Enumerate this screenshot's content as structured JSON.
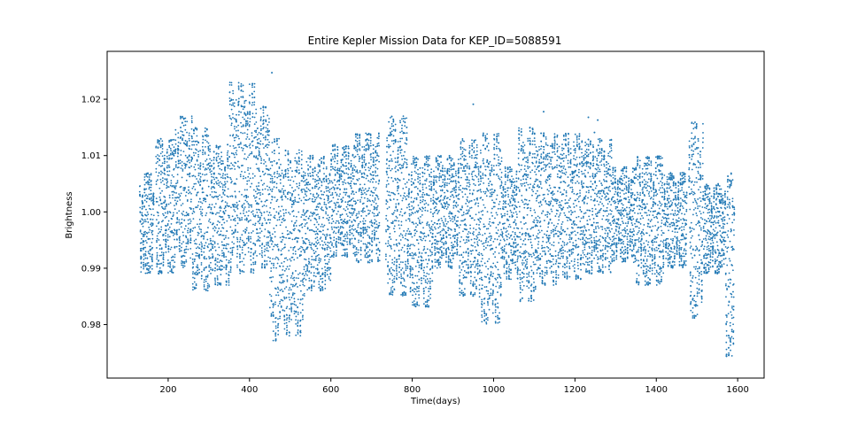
{
  "chart_data": {
    "type": "scatter",
    "title": "Entire Kepler Mission Data for KEP_ID=5088591",
    "xlabel": "Time(days)",
    "ylabel": "Brightness",
    "xlim": [
      50,
      1665
    ],
    "ylim": [
      0.9705,
      1.0285
    ],
    "xticks": [
      200,
      400,
      600,
      800,
      1000,
      1200,
      1400,
      1600
    ],
    "xtick_labels": [
      "200",
      "400",
      "600",
      "800",
      "1000",
      "1200",
      "1400",
      "1600"
    ],
    "yticks": [
      0.98,
      0.99,
      1.0,
      1.01,
      1.02
    ],
    "ytick_labels": [
      "0.98",
      "0.99",
      "1.00",
      "1.01",
      "1.02"
    ],
    "marker_color": "#1f77b4",
    "grid": false,
    "legend": "none",
    "x_range_observed": [
      130,
      1592
    ],
    "segments": [
      {
        "x": [
          130,
          140
        ],
        "y": [
          0.988,
          1.006
        ]
      },
      {
        "x": [
          140,
          165
        ],
        "y": [
          0.989,
          1.007
        ]
      },
      {
        "x": [
          170,
          215
        ],
        "y": [
          0.989,
          1.013
        ]
      },
      {
        "x": [
          215,
          260
        ],
        "y": [
          0.99,
          1.017
        ]
      },
      {
        "x": [
          260,
          310
        ],
        "y": [
          0.986,
          1.015
        ]
      },
      {
        "x": [
          310,
          350
        ],
        "y": [
          0.987,
          1.012
        ]
      },
      {
        "x": [
          350,
          415
        ],
        "y": [
          0.989,
          1.023
        ]
      },
      {
        "x": [
          415,
          450
        ],
        "y": [
          0.99,
          1.019
        ]
      },
      {
        "x": [
          450,
          480
        ],
        "y": [
          0.977,
          1.013
        ]
      },
      {
        "x": [
          480,
          535
        ],
        "y": [
          0.978,
          1.011
        ]
      },
      {
        "x": [
          535,
          600
        ],
        "y": [
          0.986,
          1.01
        ]
      },
      {
        "x": [
          600,
          660
        ],
        "y": [
          0.992,
          1.012
        ]
      },
      {
        "x": [
          660,
          720
        ],
        "y": [
          0.991,
          1.014
        ]
      },
      {
        "x": [
          735,
          790
        ],
        "y": [
          0.985,
          1.017
        ]
      },
      {
        "x": [
          790,
          850
        ],
        "y": [
          0.983,
          1.01
        ]
      },
      {
        "x": [
          850,
          915
        ],
        "y": [
          0.99,
          1.01
        ]
      },
      {
        "x": [
          915,
          965
        ],
        "y": [
          0.985,
          1.013
        ]
      },
      {
        "x": [
          965,
          1020
        ],
        "y": [
          0.98,
          1.014
        ]
      },
      {
        "x": [
          1020,
          1060
        ],
        "y": [
          0.988,
          1.008
        ]
      },
      {
        "x": [
          1060,
          1110
        ],
        "y": [
          0.984,
          1.015
        ]
      },
      {
        "x": [
          1110,
          1165
        ],
        "y": [
          0.987,
          1.014
        ]
      },
      {
        "x": [
          1165,
          1230
        ],
        "y": [
          0.988,
          1.014
        ]
      },
      {
        "x": [
          1230,
          1290
        ],
        "y": [
          0.989,
          1.013
        ]
      },
      {
        "x": [
          1290,
          1350
        ],
        "y": [
          0.991,
          1.008
        ]
      },
      {
        "x": [
          1350,
          1420
        ],
        "y": [
          0.987,
          1.01
        ]
      },
      {
        "x": [
          1420,
          1475
        ],
        "y": [
          0.99,
          1.007
        ]
      },
      {
        "x": [
          1480,
          1515
        ],
        "y": [
          0.981,
          1.016
        ]
      },
      {
        "x": [
          1515,
          1570
        ],
        "y": [
          0.989,
          1.005
        ]
      },
      {
        "x": [
          1570,
          1592
        ],
        "y": [
          0.974,
          1.007
        ]
      }
    ],
    "outliers": [
      {
        "x": 455,
        "y": 1.0247
      },
      {
        "x": 950,
        "y": 1.0191
      },
      {
        "x": 1123,
        "y": 1.0178
      },
      {
        "x": 1233,
        "y": 1.0168
      },
      {
        "x": 1256,
        "y": 1.0163
      },
      {
        "x": 1248,
        "y": 1.0141
      }
    ]
  }
}
